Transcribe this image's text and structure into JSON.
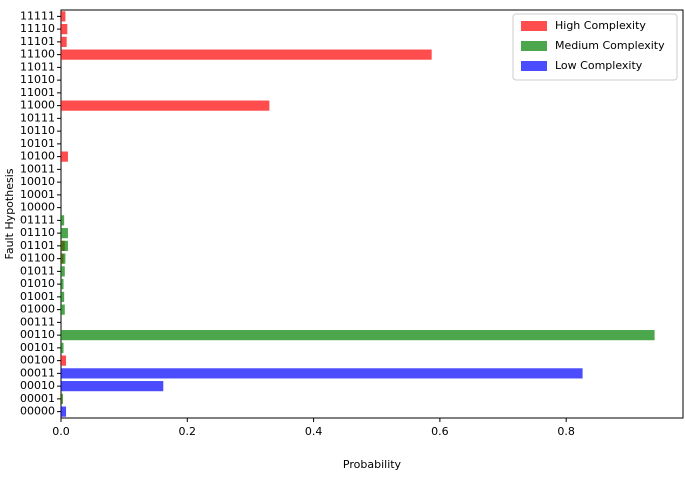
{
  "chart_data": {
    "type": "barh",
    "xlabel": "Probability",
    "ylabel": "Fault Hypothesis",
    "categories": [
      "00000",
      "00001",
      "00010",
      "00011",
      "00100",
      "00101",
      "00110",
      "00111",
      "01000",
      "01001",
      "01010",
      "01011",
      "01100",
      "01101",
      "01110",
      "01111",
      "10000",
      "10001",
      "10010",
      "10011",
      "10100",
      "10101",
      "10110",
      "10111",
      "11000",
      "11001",
      "11010",
      "11011",
      "11100",
      "11101",
      "11110",
      "11111"
    ],
    "series": [
      {
        "name": "High Complexity",
        "color": "#ff0000",
        "values": [
          0,
          0.002,
          0,
          0,
          0.008,
          0,
          0,
          0,
          0,
          0,
          0,
          0,
          0.004,
          0.006,
          0,
          0,
          0,
          0,
          0,
          0,
          0.011,
          0,
          0,
          0,
          0.33,
          0,
          0,
          0,
          0.587,
          0.009,
          0.01,
          0.007
        ]
      },
      {
        "name": "Medium Complexity",
        "color": "#008000",
        "values": [
          0,
          0.003,
          0,
          0,
          0,
          0.004,
          0.94,
          0,
          0.006,
          0.005,
          0.004,
          0.006,
          0.007,
          0.011,
          0.011,
          0.005,
          0,
          0,
          0,
          0,
          0,
          0,
          0,
          0,
          0,
          0,
          0,
          0,
          0,
          0,
          0,
          0
        ]
      },
      {
        "name": "Low Complexity",
        "color": "#0000ff",
        "values": [
          0.008,
          0,
          0.162,
          0.826,
          0,
          0,
          0,
          0,
          0,
          0,
          0,
          0,
          0,
          0,
          0,
          0,
          0,
          0,
          0,
          0,
          0,
          0,
          0,
          0,
          0,
          0,
          0,
          0,
          0,
          0,
          0,
          0
        ]
      }
    ],
    "xlim": [
      0,
      0.985
    ],
    "xticks": [
      {
        "value": 0,
        "label": "0.0"
      },
      0.2,
      0.4,
      0.6,
      0.8
    ],
    "legend": "upper right",
    "alpha": 0.7
  }
}
